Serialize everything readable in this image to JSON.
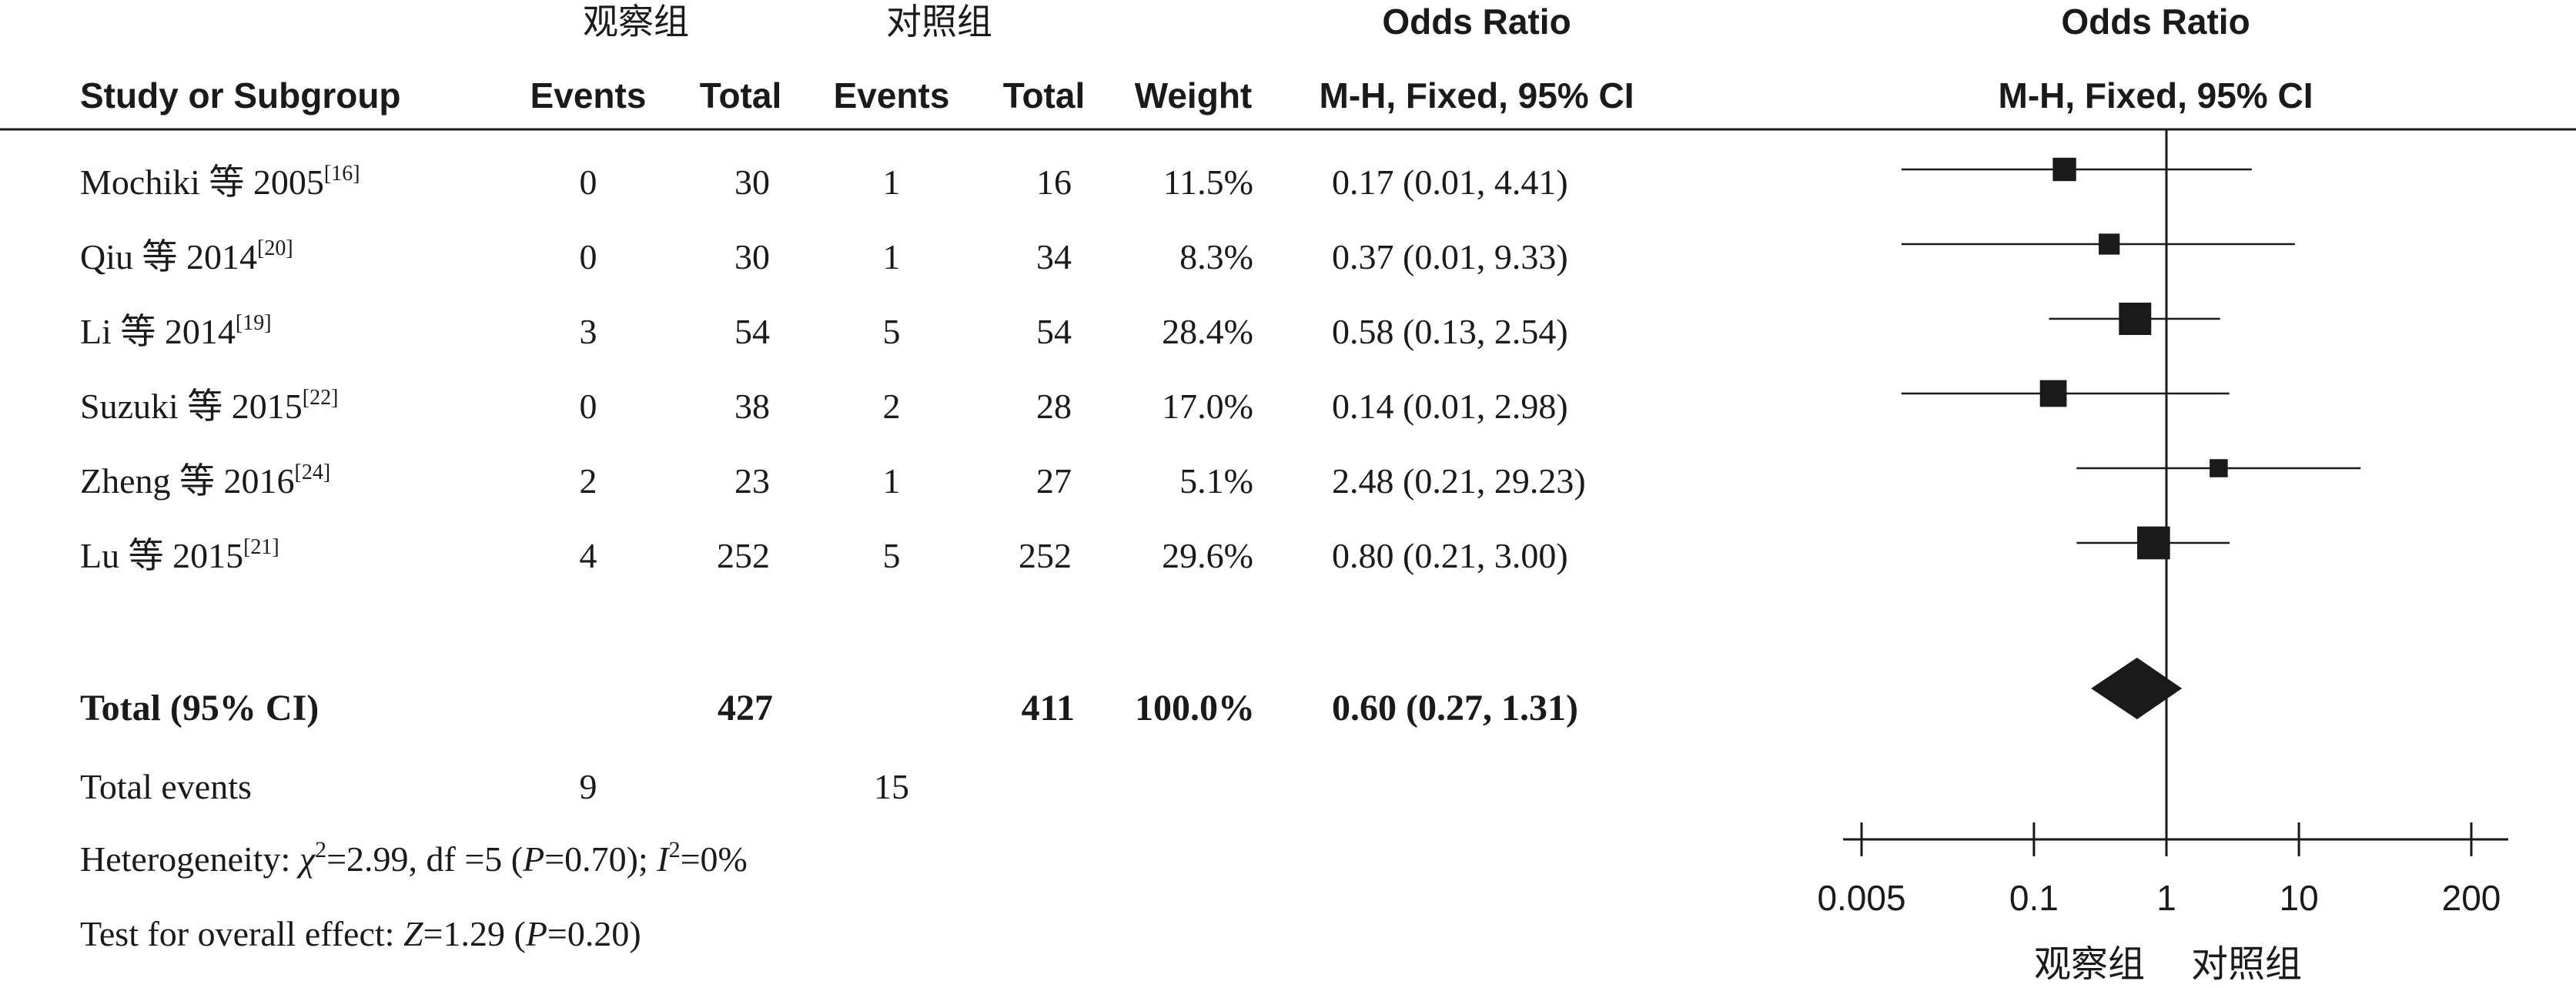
{
  "chart_data": {
    "type": "forest",
    "groups": {
      "experimental": "观察组",
      "control": "对照组"
    },
    "columns": {
      "study": "Study or Subgroup",
      "events": "Events",
      "total": "Total",
      "weight": "Weight",
      "effect_title": "Odds Ratio",
      "effect_method": "M-H, Fixed, 95% CI"
    },
    "studies": [
      {
        "name": "Mochiki 等 2005",
        "ref": "[16]",
        "exp_events": "0",
        "exp_total": "30",
        "ctrl_events": "1",
        "ctrl_total": "16",
        "weight": "11.5%",
        "ci_text": "0.17 (0.01, 4.41)",
        "or": 0.17,
        "lower": 0.01,
        "upper": 4.41,
        "weight_value": 11.5
      },
      {
        "name": "Qiu 等 2014",
        "ref": "[20]",
        "exp_events": "0",
        "exp_total": "30",
        "ctrl_events": "1",
        "ctrl_total": "34",
        "weight": "8.3%",
        "ci_text": "0.37 (0.01, 9.33)",
        "or": 0.37,
        "lower": 0.01,
        "upper": 9.33,
        "weight_value": 8.3
      },
      {
        "name": "Li 等 2014",
        "ref": "[19]",
        "exp_events": "3",
        "exp_total": "54",
        "ctrl_events": "5",
        "ctrl_total": "54",
        "weight": "28.4%",
        "ci_text": "0.58 (0.13, 2.54)",
        "or": 0.58,
        "lower": 0.13,
        "upper": 2.54,
        "weight_value": 28.4
      },
      {
        "name": "Suzuki 等 2015",
        "ref": "[22]",
        "exp_events": "0",
        "exp_total": "38",
        "ctrl_events": "2",
        "ctrl_total": "28",
        "weight": "17.0%",
        "ci_text": "0.14 (0.01, 2.98)",
        "or": 0.14,
        "lower": 0.01,
        "upper": 2.98,
        "weight_value": 17.0
      },
      {
        "name": "Zheng 等 2016",
        "ref": "[24]",
        "exp_events": "2",
        "exp_total": "23",
        "ctrl_events": "1",
        "ctrl_total": "27",
        "weight": "5.1%",
        "ci_text": "2.48 (0.21, 29.23)",
        "or": 2.48,
        "lower": 0.21,
        "upper": 29.23,
        "weight_value": 5.1
      },
      {
        "name": "Lu 等 2015",
        "ref": "[21]",
        "exp_events": "4",
        "exp_total": "252",
        "ctrl_events": "5",
        "ctrl_total": "252",
        "weight": "29.6%",
        "ci_text": "0.80 (0.21, 3.00)",
        "or": 0.8,
        "lower": 0.21,
        "upper": 3.0,
        "weight_value": 29.6
      }
    ],
    "total": {
      "label": "Total (95% CI)",
      "exp_total": "427",
      "ctrl_total": "411",
      "weight": "100.0%",
      "ci_text": "0.60 (0.27, 1.31)",
      "or": 0.6,
      "lower": 0.27,
      "upper": 1.31
    },
    "total_events": {
      "label": "Total events",
      "exp": "9",
      "ctrl": "15"
    },
    "heterogeneity": {
      "label": "Heterogeneity: ",
      "chi_symbol": "χ",
      "chi_power": "2",
      "chi_value": "=2.99, df =5 (",
      "p_symbol": "P",
      "p_value": "=0.70); ",
      "i_symbol": "I",
      "i_power": "2",
      "i_value": "=0%"
    },
    "overall_effect": {
      "label": "Test for overall effect: ",
      "z_symbol": "Z",
      "z_value": "=1.29 (",
      "p_symbol": "P",
      "p_value": "=0.20)"
    },
    "x_axis": {
      "scale": "log",
      "ticks": [
        0.005,
        0.1,
        1,
        10,
        200
      ],
      "tick_labels": [
        "0.005",
        "0.1",
        "1",
        "10",
        "200"
      ],
      "favours_left": "观察组",
      "favours_right": "对照组"
    }
  }
}
